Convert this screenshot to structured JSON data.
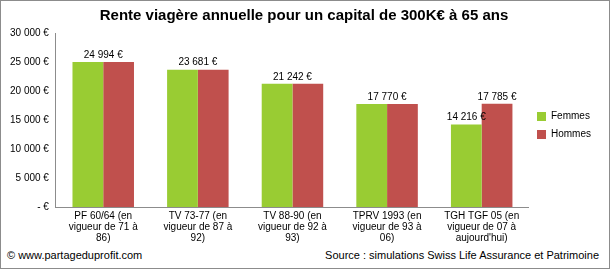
{
  "chart_data": {
    "type": "bar",
    "title": "Rente viagère annuelle pour un capital de 300K€ à 65 ans",
    "categories": [
      "PF 60/64 (en vigueur de 71 à 86)",
      "TV 73-77 (en vigueur de 87 à 92)",
      "TV 88-90 (en vigueur de 92 à 93)",
      "TPRV 1993 (en vigueur de 93 à 06)",
      "TGH TGF 05 (en vigueur de 07 à aujourd'hui)"
    ],
    "series": [
      {
        "name": "Femmes",
        "color": "#99cc33",
        "values": [
          24994,
          23681,
          21242,
          17770,
          14216
        ],
        "value_labels": [
          null,
          null,
          null,
          null,
          "14 216 €"
        ]
      },
      {
        "name": "Hommes",
        "color": "#c0504d",
        "values": [
          24994,
          23681,
          21242,
          17770,
          17785
        ],
        "value_labels": [
          "24 994 €",
          "23 681 €",
          "21 242 €",
          "17 770 €",
          "17 785 €"
        ]
      }
    ],
    "ylim": [
      0,
      30000
    ],
    "yticks": [
      {
        "value": 0,
        "label": "- €"
      },
      {
        "value": 5000,
        "label": "5 000 €"
      },
      {
        "value": 10000,
        "label": "10 000 €"
      },
      {
        "value": 15000,
        "label": "15 000 €"
      },
      {
        "value": 20000,
        "label": "20 000 €"
      },
      {
        "value": 25000,
        "label": "25 000 €"
      },
      {
        "value": 30000,
        "label": "30 000 €"
      }
    ],
    "grid": false,
    "legend": "right",
    "data_labels": true,
    "annotations": [
      "© www.partageduprofit.com",
      "Source : simulations Swiss Life Assurance et Patrimoine"
    ]
  }
}
